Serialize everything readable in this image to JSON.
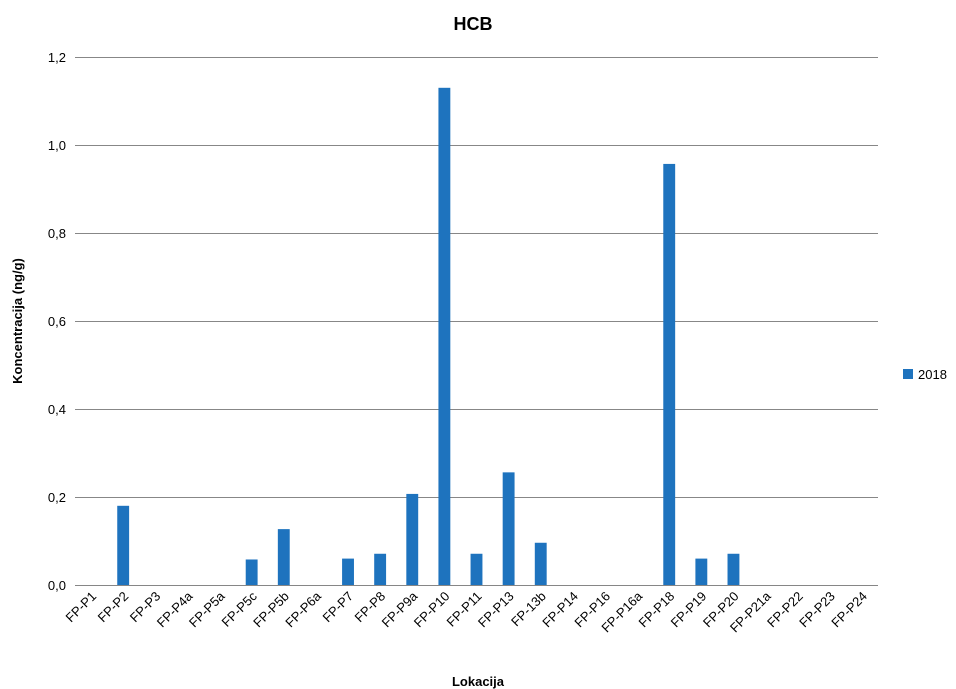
{
  "chart_data": {
    "type": "bar",
    "title": "HCB",
    "xlabel": "Lokacija",
    "ylabel": "Koncentracija (ng/g)",
    "ylim": [
      0,
      1.2
    ],
    "yticks": [
      "0,0",
      "0,2",
      "0,4",
      "0,6",
      "0,8",
      "1,0",
      "1,2"
    ],
    "grid": true,
    "legend_position": "right",
    "categories": [
      "FP-P1",
      "FP-P2",
      "FP-P3",
      "FP-P4a",
      "FP-P5a",
      "FP-P5c",
      "FP-P5b",
      "FP-P6a",
      "FP-P7",
      "FP-P8",
      "FP-P9a",
      "FP-P10",
      "FP-P11",
      "FP-P13",
      "FP-13b",
      "FP-P14",
      "FP-P16",
      "FP-P16a",
      "FP-P18",
      "FP-P19",
      "FP-P20",
      "FP-P21a",
      "FP-P22",
      "FP-P23",
      "FP-P24"
    ],
    "series": [
      {
        "name": "2018",
        "color": "#1e73be",
        "values": [
          0,
          0.18,
          0,
          0,
          0,
          0.058,
          0.127,
          0,
          0.06,
          0.071,
          0.207,
          1.13,
          0.071,
          0.256,
          0.096,
          0,
          0,
          0,
          0.957,
          0.06,
          0.071,
          0,
          0,
          0,
          0
        ]
      }
    ]
  }
}
